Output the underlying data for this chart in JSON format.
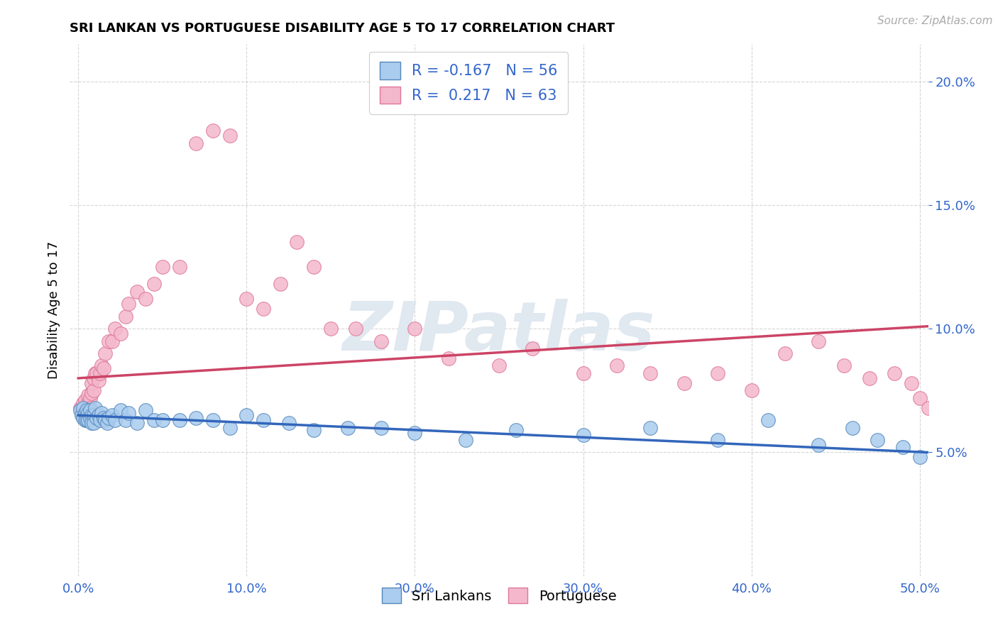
{
  "title": "SRI LANKAN VS PORTUGUESE DISABILITY AGE 5 TO 17 CORRELATION CHART",
  "source": "Source: ZipAtlas.com",
  "ylabel": "Disability Age 5 to 17",
  "xlabel_vals": [
    0.0,
    0.1,
    0.2,
    0.3,
    0.4,
    0.5
  ],
  "ylabel_vals": [
    0.05,
    0.1,
    0.15,
    0.2
  ],
  "xlim": [
    -0.005,
    0.505
  ],
  "ylim": [
    0.0,
    0.215
  ],
  "sri_lankan_color": "#aaccee",
  "portuguese_color": "#f4b8cc",
  "sri_lankan_edge": "#5588bb",
  "portuguese_edge": "#dd7799",
  "trend_sri_color": "#3366bb",
  "trend_port_color": "#cc4466",
  "legend_text_color": "#3366cc",
  "sri_R": -0.167,
  "sri_N": 56,
  "port_R": 0.217,
  "port_N": 63,
  "background_color": "#ffffff",
  "grid_color": "#bbbbbb",
  "watermark": "ZIPatlas",
  "watermark_color": "#e0e8f0",
  "sri_x": [
    0.001,
    0.002,
    0.003,
    0.003,
    0.004,
    0.004,
    0.005,
    0.005,
    0.006,
    0.006,
    0.007,
    0.007,
    0.008,
    0.008,
    0.009,
    0.009,
    0.01,
    0.011,
    0.012,
    0.013,
    0.014,
    0.015,
    0.016,
    0.017,
    0.018,
    0.02,
    0.022,
    0.025,
    0.028,
    0.03,
    0.035,
    0.04,
    0.045,
    0.05,
    0.06,
    0.07,
    0.08,
    0.09,
    0.1,
    0.11,
    0.125,
    0.14,
    0.16,
    0.18,
    0.2,
    0.23,
    0.26,
    0.3,
    0.34,
    0.38,
    0.41,
    0.44,
    0.46,
    0.475,
    0.49,
    0.5
  ],
  "sri_y": [
    0.067,
    0.065,
    0.068,
    0.064,
    0.066,
    0.063,
    0.067,
    0.063,
    0.066,
    0.063,
    0.067,
    0.064,
    0.065,
    0.062,
    0.065,
    0.062,
    0.068,
    0.064,
    0.065,
    0.063,
    0.066,
    0.064,
    0.063,
    0.062,
    0.064,
    0.065,
    0.063,
    0.067,
    0.063,
    0.066,
    0.062,
    0.067,
    0.063,
    0.063,
    0.063,
    0.064,
    0.063,
    0.06,
    0.065,
    0.063,
    0.062,
    0.059,
    0.06,
    0.06,
    0.058,
    0.055,
    0.059,
    0.057,
    0.06,
    0.055,
    0.063,
    0.053,
    0.06,
    0.055,
    0.052,
    0.048
  ],
  "port_x": [
    0.001,
    0.002,
    0.003,
    0.003,
    0.004,
    0.004,
    0.005,
    0.005,
    0.006,
    0.006,
    0.007,
    0.007,
    0.008,
    0.008,
    0.009,
    0.009,
    0.01,
    0.011,
    0.012,
    0.013,
    0.014,
    0.015,
    0.016,
    0.018,
    0.02,
    0.022,
    0.025,
    0.028,
    0.03,
    0.035,
    0.04,
    0.045,
    0.05,
    0.06,
    0.07,
    0.08,
    0.09,
    0.1,
    0.11,
    0.12,
    0.13,
    0.14,
    0.15,
    0.165,
    0.18,
    0.2,
    0.22,
    0.25,
    0.27,
    0.3,
    0.32,
    0.34,
    0.36,
    0.38,
    0.4,
    0.42,
    0.44,
    0.455,
    0.47,
    0.485,
    0.495,
    0.5,
    0.505
  ],
  "port_y": [
    0.068,
    0.066,
    0.07,
    0.067,
    0.065,
    0.071,
    0.068,
    0.066,
    0.07,
    0.073,
    0.072,
    0.068,
    0.074,
    0.078,
    0.075,
    0.08,
    0.082,
    0.082,
    0.079,
    0.082,
    0.085,
    0.084,
    0.09,
    0.095,
    0.095,
    0.1,
    0.098,
    0.105,
    0.11,
    0.115,
    0.112,
    0.118,
    0.125,
    0.125,
    0.175,
    0.18,
    0.178,
    0.112,
    0.108,
    0.118,
    0.135,
    0.125,
    0.1,
    0.1,
    0.095,
    0.1,
    0.088,
    0.085,
    0.092,
    0.082,
    0.085,
    0.082,
    0.078,
    0.082,
    0.075,
    0.09,
    0.095,
    0.085,
    0.08,
    0.082,
    0.078,
    0.072,
    0.068
  ],
  "sri_trend_x0": 0.0,
  "sri_trend_x1": 0.505,
  "sri_trend_y0": 0.065,
  "sri_trend_y1": 0.05,
  "port_trend_x0": 0.0,
  "port_trend_x1": 0.505,
  "port_trend_y0": 0.08,
  "port_trend_y1": 0.101
}
